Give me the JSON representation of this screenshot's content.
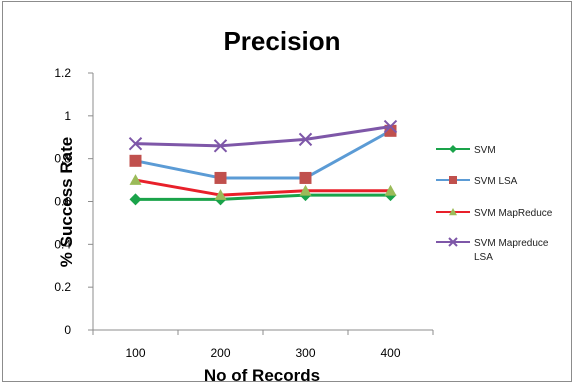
{
  "chart_data": {
    "type": "line",
    "title": "Precision",
    "xlabel": "No of Records",
    "ylabel": "% Success Rate",
    "categories": [
      "100",
      "200",
      "300",
      "400"
    ],
    "yticks": [
      "0",
      "0.2",
      "0.4",
      "0.6",
      "0.8",
      "1",
      "1.2"
    ],
    "ylim": [
      0,
      1.2
    ],
    "grid": false,
    "legend_position": "right",
    "series": [
      {
        "name": "SVM",
        "values": [
          0.61,
          0.61,
          0.63,
          0.63
        ],
        "color": "#1aa34a",
        "marker": "diamond"
      },
      {
        "name": "SVM LSA",
        "values": [
          0.79,
          0.71,
          0.71,
          0.93
        ],
        "color": "#5b9bd5",
        "marker_color": "#c0504d",
        "marker": "square"
      },
      {
        "name": "SVM MapReduce",
        "values": [
          0.7,
          0.63,
          0.65,
          0.65
        ],
        "color": "#e8202a",
        "marker_color": "#9bbb59",
        "marker": "triangle"
      },
      {
        "name": "SVM Mapreduce LSA",
        "values": [
          0.87,
          0.86,
          0.89,
          0.95
        ],
        "color": "#7e57a8",
        "marker": "x"
      }
    ]
  }
}
